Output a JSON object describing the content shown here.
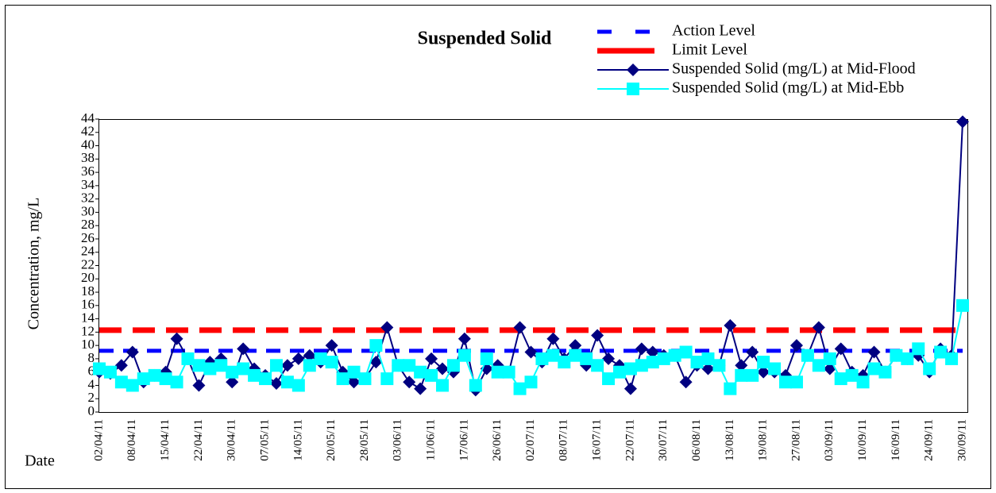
{
  "chart_data": {
    "type": "line",
    "title": "Suspended Solid",
    "y_label": "Concentration, mg/L",
    "x_label": "Date",
    "categories": [
      "02/04/11",
      null,
      null,
      "08/04/11",
      null,
      null,
      "15/04/11",
      null,
      null,
      "22/04/11",
      null,
      null,
      "30/04/11",
      null,
      null,
      "07/05/11",
      null,
      null,
      "14/05/11",
      null,
      null,
      "20/05/11",
      null,
      null,
      "28/05/11",
      null,
      null,
      "03/06/11",
      null,
      null,
      "11/06/11",
      null,
      null,
      "17/06/11",
      null,
      null,
      "26/06/11",
      null,
      null,
      "02/07/11",
      null,
      null,
      "08/07/11",
      null,
      null,
      "16/07/11",
      null,
      null,
      "22/07/11",
      null,
      null,
      "30/07/11",
      null,
      null,
      "06/08/11",
      null,
      null,
      "13/08/11",
      null,
      null,
      "19/08/11",
      null,
      null,
      "27/08/11",
      null,
      null,
      "03/09/11",
      null,
      null,
      "10/09/11",
      null,
      null,
      "16/09/11",
      null,
      null,
      "24/09/11",
      null,
      null,
      "30/09/11"
    ],
    "ylim": [
      0,
      44
    ],
    "yticks": [
      0,
      2,
      4,
      6,
      8,
      10,
      12,
      14,
      16,
      18,
      20,
      22,
      24,
      26,
      28,
      30,
      32,
      34,
      36,
      38,
      40,
      42,
      44
    ],
    "series": [
      {
        "name": "Action Level",
        "color": "#0000ff",
        "style": "dash",
        "values": [
          9.2,
          9.2,
          9.2,
          9.2,
          9.2,
          9.2,
          9.2,
          9.2,
          9.2,
          9.2,
          9.2,
          9.2,
          9.2,
          9.2,
          9.2,
          9.2,
          9.2,
          9.2,
          9.2,
          9.2,
          9.2,
          9.2,
          9.2,
          9.2,
          9.2,
          9.2,
          9.2,
          9.2,
          9.2,
          9.2,
          9.2,
          9.2,
          9.2,
          9.2,
          9.2,
          9.2,
          9.2,
          9.2,
          9.2,
          9.2,
          9.2,
          9.2,
          9.2,
          9.2,
          9.2,
          9.2,
          9.2,
          9.2,
          9.2,
          9.2,
          9.2,
          9.2,
          9.2,
          9.2,
          9.2,
          9.2,
          9.2,
          9.2,
          9.2,
          9.2,
          9.2,
          9.2,
          9.2,
          9.2,
          9.2,
          9.2,
          9.2,
          9.2,
          9.2,
          9.2,
          9.2,
          9.2,
          9.2,
          9.2,
          9.2,
          9.2,
          9.2,
          9.2,
          9.2
        ]
      },
      {
        "name": "Limit Level",
        "color": "#ff0000",
        "style": "dash",
        "values": [
          12.3,
          12.3,
          12.3,
          12.3,
          12.3,
          12.3,
          12.3,
          12.3,
          12.3,
          12.3,
          12.3,
          12.3,
          12.3,
          12.3,
          12.3,
          12.3,
          12.3,
          12.3,
          12.3,
          12.3,
          12.3,
          12.3,
          12.3,
          12.3,
          12.3,
          12.3,
          12.3,
          12.3,
          12.3,
          12.3,
          12.3,
          12.3,
          12.3,
          12.3,
          12.3,
          12.3,
          12.3,
          12.3,
          12.3,
          12.3,
          12.3,
          12.3,
          12.3,
          12.3,
          12.3,
          12.3,
          12.3,
          12.3,
          12.3,
          12.3,
          12.3,
          12.3,
          12.3,
          12.3,
          12.3,
          12.3,
          12.3,
          12.3,
          12.3,
          12.3,
          12.3,
          12.3,
          12.3,
          12.3,
          12.3,
          12.3,
          12.3,
          12.3,
          12.3,
          12.3,
          12.3,
          12.3,
          12.3,
          12.3,
          12.3,
          12.3,
          12.3,
          12.3,
          12.3
        ]
      },
      {
        "name": "Suspended Solid (mg/L) at Mid-Flood",
        "color": "#000080",
        "marker": "diamond",
        "values": [
          6,
          5.8,
          7,
          9,
          4.5,
          5.5,
          6,
          11,
          8,
          4,
          7.5,
          8,
          4.5,
          9.5,
          6.5,
          5.5,
          4.3,
          7,
          8,
          8.5,
          7.5,
          10,
          6,
          4.5,
          5,
          7.5,
          12.7,
          7,
          4.5,
          3.5,
          8,
          6.5,
          6,
          11,
          3.3,
          6.5,
          7,
          6,
          12.7,
          9,
          7.5,
          11,
          8,
          10,
          7,
          11.5,
          8,
          7,
          3.5,
          9.5,
          9,
          8.5,
          8.5,
          4.5,
          7,
          6.5,
          7,
          13,
          7,
          9,
          6,
          6,
          5.5,
          10,
          8.5,
          12.7,
          6.5,
          9.5,
          6,
          5.5,
          9,
          6,
          8.5,
          8,
          8.5,
          6,
          9.5,
          8.5,
          43.6
        ]
      },
      {
        "name": "Suspended Solid (mg/L) at Mid-Ebb",
        "color": "#00ffff",
        "marker": "square",
        "values": [
          6.5,
          6,
          4.5,
          4,
          5,
          5.5,
          5,
          4.5,
          8,
          7,
          6.5,
          7,
          6,
          6.5,
          5.5,
          5,
          7,
          4.5,
          4,
          7,
          8,
          7.5,
          5,
          6,
          5,
          10,
          5,
          7,
          7,
          6,
          5.5,
          4,
          7,
          8.5,
          4,
          8,
          6,
          6,
          3.5,
          4.5,
          8,
          8.5,
          7.5,
          8.5,
          8,
          7,
          5,
          6,
          6.5,
          7,
          7.5,
          8,
          8.5,
          9,
          7.5,
          8,
          7,
          3.5,
          5.5,
          5.5,
          7.5,
          6.5,
          4.5,
          4.5,
          8.5,
          7,
          8,
          5,
          5.5,
          4.5,
          6.5,
          6,
          8.5,
          8,
          9.5,
          6.5,
          9,
          8,
          16
        ]
      }
    ]
  }
}
